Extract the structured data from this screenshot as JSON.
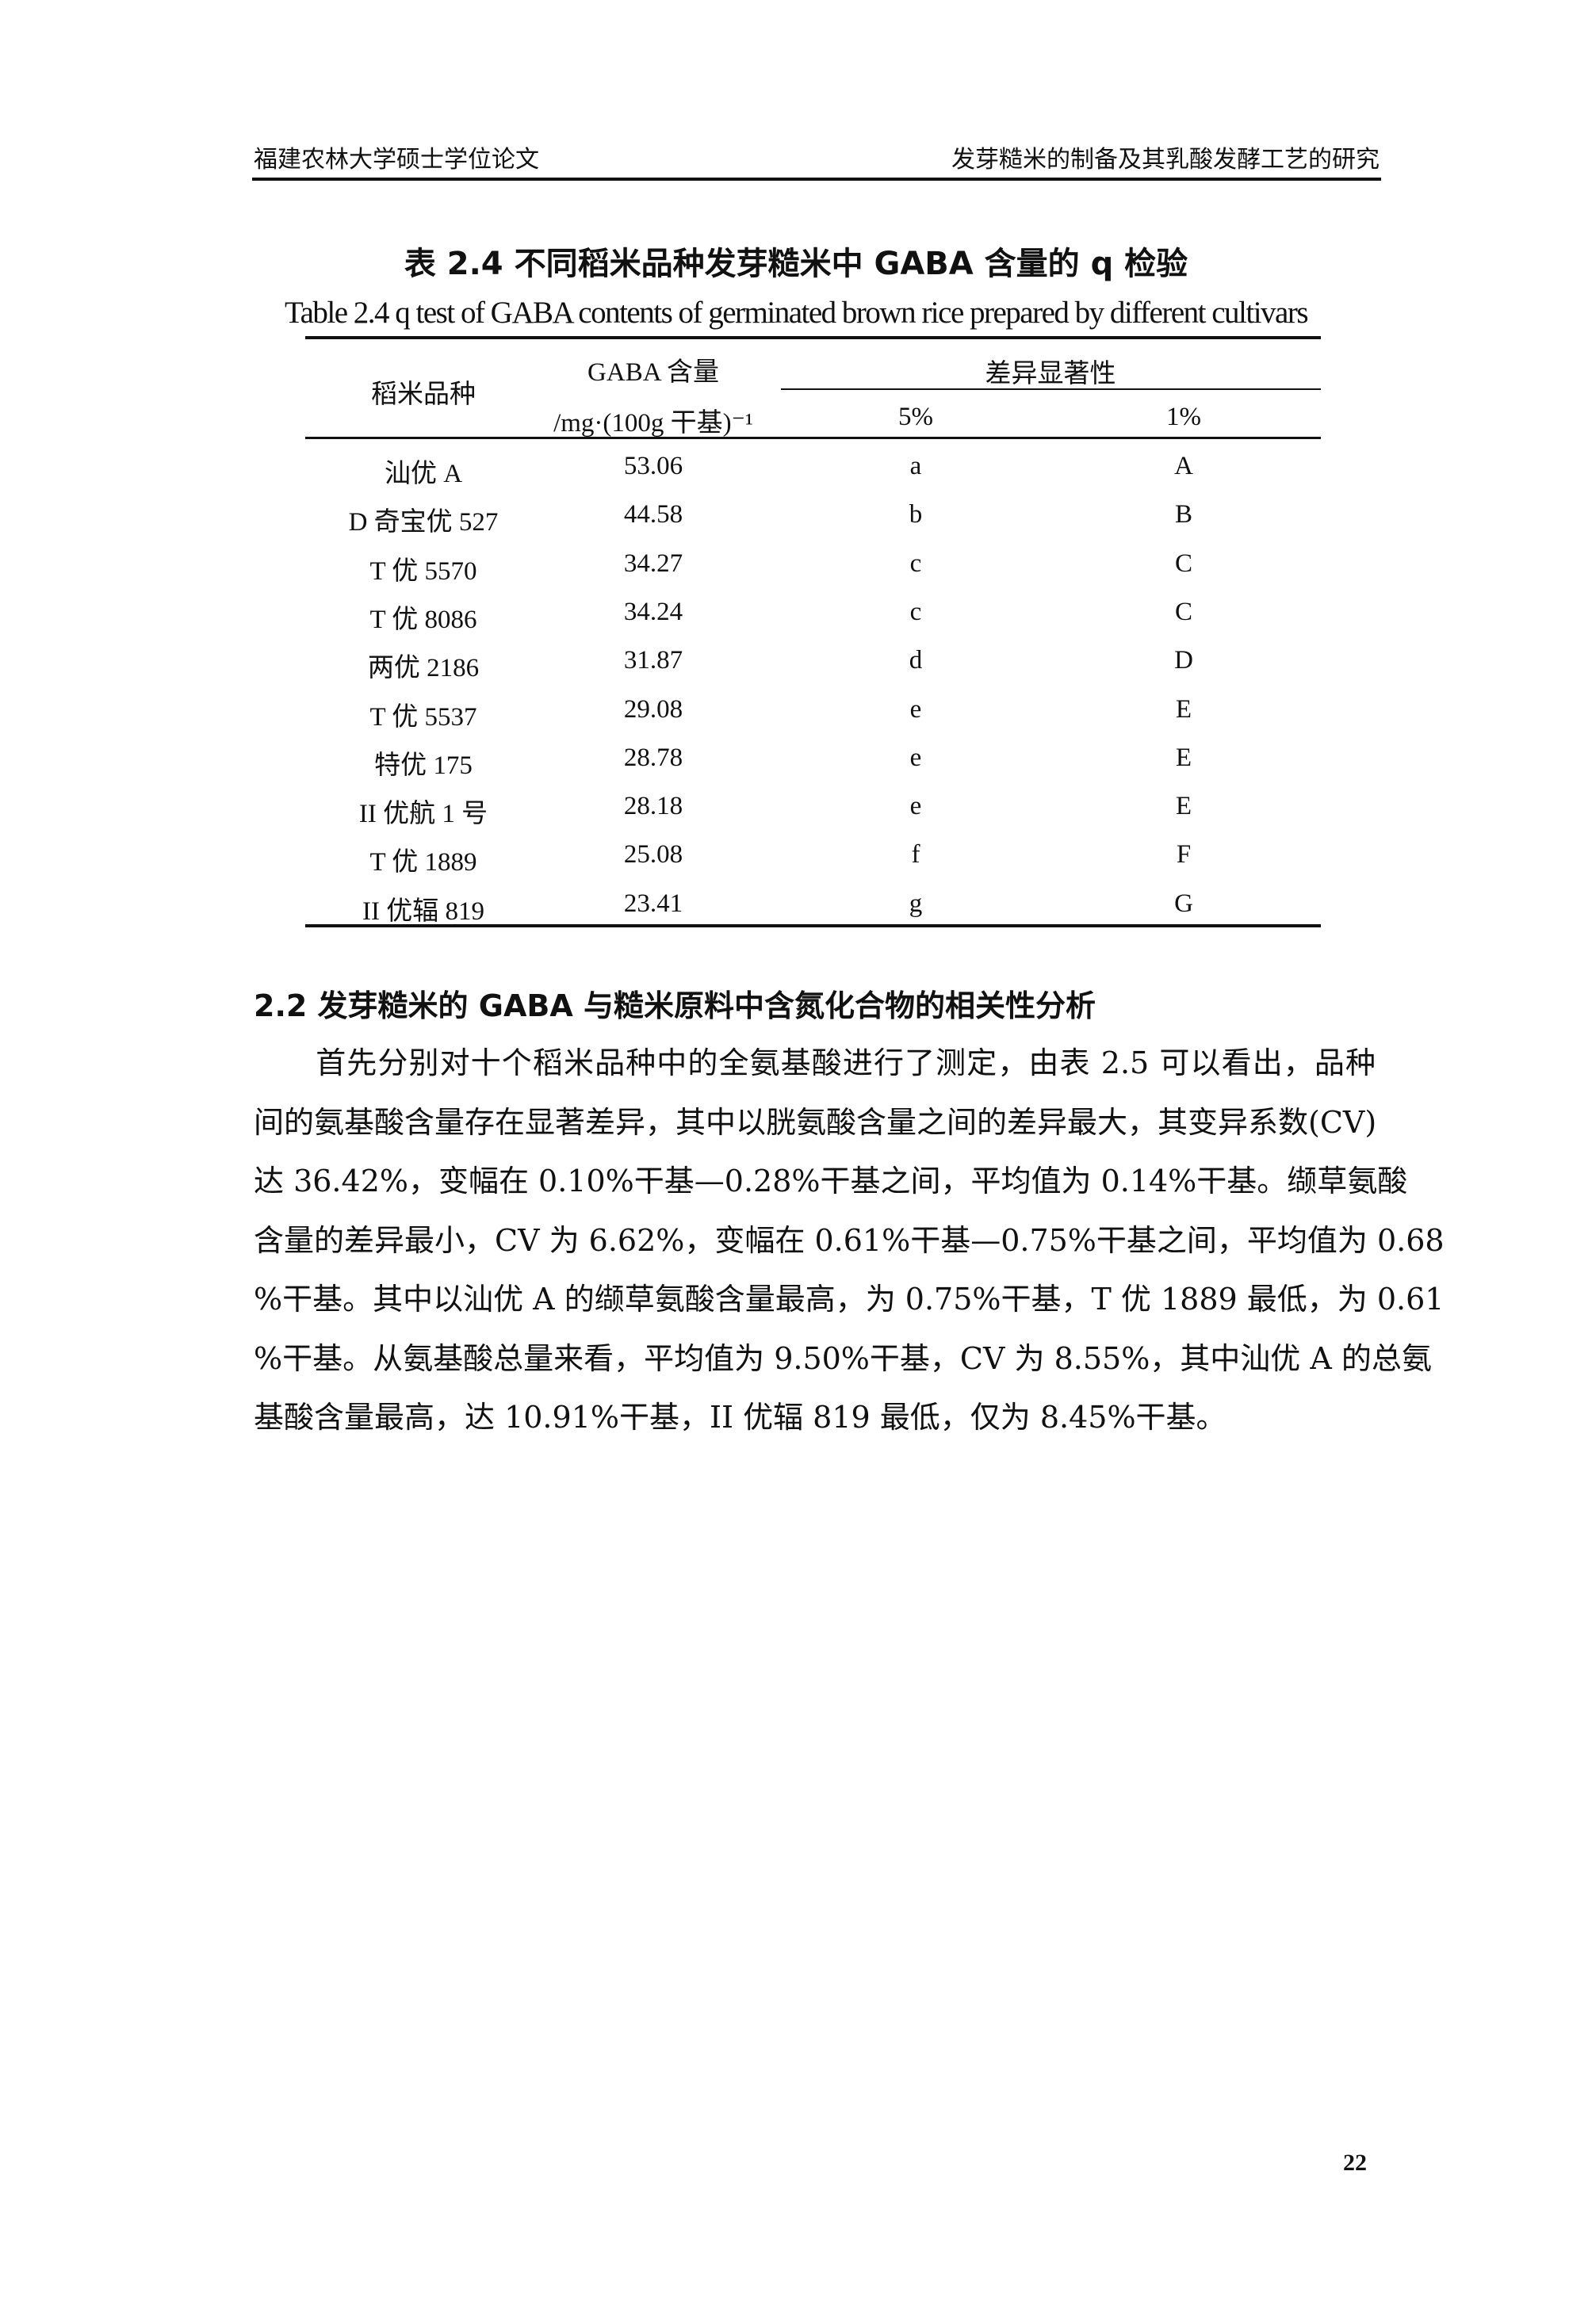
{
  "header": {
    "left": "福建农林大学硕士学位论文",
    "right": "发芽糙米的制备及其乳酸发酵工艺的研究"
  },
  "table": {
    "title_cn": "表 2.4 不同稻米品种发芽糙米中 GABA 含量的 q 检验",
    "title_en": "Table 2.4 q test of GABA contents of germinated brown rice prepared by different cultivars",
    "col_variety": "稻米品种",
    "col_gaba_1": "GABA 含量",
    "col_gaba_2": "/mg·(100g 干基)⁻¹",
    "col_sig": "差异显著性",
    "col_5": "5%",
    "col_1": "1%",
    "rows": [
      {
        "variety": "汕优 A",
        "gaba": "53.06",
        "p5": "a",
        "p1": "A"
      },
      {
        "variety": "D 奇宝优 527",
        "gaba": "44.58",
        "p5": "b",
        "p1": "B"
      },
      {
        "variety": "T 优 5570",
        "gaba": "34.27",
        "p5": "c",
        "p1": "C"
      },
      {
        "variety": "T 优 8086",
        "gaba": "34.24",
        "p5": "c",
        "p1": "C"
      },
      {
        "variety": "两优 2186",
        "gaba": "31.87",
        "p5": "d",
        "p1": "D"
      },
      {
        "variety": "T 优 5537",
        "gaba": "29.08",
        "p5": "e",
        "p1": "E"
      },
      {
        "variety": "特优 175",
        "gaba": "28.78",
        "p5": "e",
        "p1": "E"
      },
      {
        "variety": "II 优航 1 号",
        "gaba": "28.18",
        "p5": "e",
        "p1": "E"
      },
      {
        "variety": "T 优 1889",
        "gaba": "25.08",
        "p5": "f",
        "p1": "F"
      },
      {
        "variety": "II 优辐 819",
        "gaba": "23.41",
        "p5": "g",
        "p1": "G"
      }
    ]
  },
  "section": {
    "heading": "2.2 发芽糙米的 GABA 与糙米原料中含氮化合物的相关性分析",
    "lines": [
      "　　首先分别对十个稻米品种中的全氨基酸进行了测定，由表 2.5 可以看出，品种",
      "间的氨基酸含量存在显著差异，其中以胱氨酸含量之间的差异最大，其变异系数(CV)",
      "达 36.42%，变幅在 0.10%干基—0.28%干基之间，平均值为 0.14%干基。缬草氨酸",
      "含量的差异最小，CV 为 6.62%，变幅在 0.61%干基—0.75%干基之间，平均值为 0.68",
      "%干基。其中以汕优 A 的缬草氨酸含量最高，为 0.75%干基，T 优 1889 最低，为 0.61",
      "%干基。从氨基酸总量来看，平均值为 9.50%干基，CV 为 8.55%，其中汕优 A 的总氨",
      "基酸含量最高，达 10.91%干基，II 优辐 819 最低，仅为 8.45%干基。"
    ]
  },
  "page_number": "22"
}
